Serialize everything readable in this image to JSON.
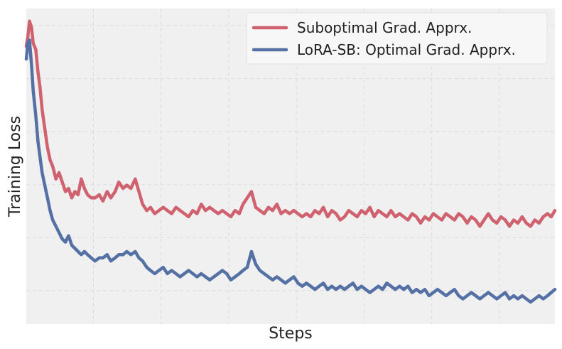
{
  "chart_data": {
    "type": "line",
    "title": "",
    "xlabel": "Steps",
    "ylabel": "Training Loss",
    "grid": true,
    "legend_position": "top-right",
    "background_color": "#f0f0f0",
    "xlim": [
      0,
      100
    ],
    "ylim": [
      0,
      100
    ],
    "x_grid": [
      12.7,
      25.5,
      38.3,
      51.1,
      63.9,
      76.7,
      89.5
    ],
    "y_grid": [
      10.6,
      27.4,
      44.2,
      61.0,
      77.8,
      94.6
    ],
    "series": [
      {
        "name": "Suboptimal Grad. Apprx.",
        "color": "#d0616f",
        "values": [
          [
            0,
            88
          ],
          [
            0.3,
            91
          ],
          [
            0.6,
            96
          ],
          [
            1.0,
            94
          ],
          [
            1.3,
            89
          ],
          [
            1.8,
            87
          ],
          [
            2.2,
            80
          ],
          [
            2.6,
            75
          ],
          [
            3.0,
            68
          ],
          [
            3.5,
            62
          ],
          [
            4.0,
            56
          ],
          [
            4.5,
            52
          ],
          [
            5.0,
            50
          ],
          [
            5.6,
            46
          ],
          [
            6.2,
            48
          ],
          [
            6.8,
            45
          ],
          [
            7.4,
            42
          ],
          [
            8.0,
            43
          ],
          [
            8.6,
            40
          ],
          [
            9.2,
            42
          ],
          [
            9.8,
            41
          ],
          [
            10.4,
            46
          ],
          [
            11.0,
            43
          ],
          [
            11.6,
            41
          ],
          [
            12.3,
            40
          ],
          [
            13.0,
            40
          ],
          [
            13.8,
            41
          ],
          [
            14.5,
            39
          ],
          [
            15.3,
            42
          ],
          [
            16.0,
            40
          ],
          [
            16.8,
            42
          ],
          [
            17.5,
            45
          ],
          [
            18.3,
            43
          ],
          [
            19.0,
            44
          ],
          [
            19.8,
            43
          ],
          [
            20.6,
            46
          ],
          [
            21.3,
            42
          ],
          [
            22.0,
            38
          ],
          [
            22.8,
            36
          ],
          [
            23.5,
            37
          ],
          [
            24.3,
            35
          ],
          [
            25.1,
            36
          ],
          [
            25.9,
            37
          ],
          [
            26.7,
            36
          ],
          [
            27.5,
            35
          ],
          [
            28.3,
            37
          ],
          [
            29.1,
            36
          ],
          [
            29.9,
            35
          ],
          [
            30.7,
            34
          ],
          [
            31.5,
            36
          ],
          [
            32.3,
            35
          ],
          [
            33.1,
            38
          ],
          [
            33.9,
            36
          ],
          [
            34.7,
            37
          ],
          [
            35.5,
            36
          ],
          [
            36.3,
            35
          ],
          [
            37.1,
            36
          ],
          [
            37.9,
            35
          ],
          [
            38.7,
            34
          ],
          [
            39.5,
            36
          ],
          [
            40.3,
            35
          ],
          [
            41.0,
            38
          ],
          [
            41.8,
            40
          ],
          [
            42.6,
            42
          ],
          [
            43.4,
            37
          ],
          [
            44.2,
            36
          ],
          [
            45.0,
            35
          ],
          [
            45.8,
            37
          ],
          [
            46.6,
            36
          ],
          [
            47.4,
            38
          ],
          [
            48.2,
            35
          ],
          [
            49.0,
            36
          ],
          [
            49.8,
            35
          ],
          [
            50.6,
            36
          ],
          [
            51.4,
            35
          ],
          [
            52.2,
            34
          ],
          [
            53.0,
            35
          ],
          [
            53.8,
            34
          ],
          [
            54.6,
            36
          ],
          [
            55.4,
            35
          ],
          [
            56.2,
            37
          ],
          [
            57.0,
            34
          ],
          [
            57.8,
            36
          ],
          [
            58.6,
            35
          ],
          [
            59.4,
            33
          ],
          [
            60.2,
            34
          ],
          [
            61.0,
            36
          ],
          [
            61.8,
            35
          ],
          [
            62.6,
            34
          ],
          [
            63.4,
            36
          ],
          [
            64.2,
            35
          ],
          [
            65.0,
            37
          ],
          [
            65.8,
            34
          ],
          [
            66.6,
            36
          ],
          [
            67.4,
            35
          ],
          [
            68.2,
            34
          ],
          [
            69.0,
            36
          ],
          [
            69.8,
            34
          ],
          [
            70.6,
            35
          ],
          [
            71.4,
            34
          ],
          [
            72.2,
            33
          ],
          [
            73.0,
            35
          ],
          [
            73.8,
            34
          ],
          [
            74.6,
            32
          ],
          [
            75.4,
            34
          ],
          [
            76.2,
            33
          ],
          [
            77.0,
            35
          ],
          [
            77.8,
            34
          ],
          [
            78.6,
            33
          ],
          [
            79.4,
            35
          ],
          [
            80.2,
            34
          ],
          [
            81.0,
            33
          ],
          [
            81.8,
            35
          ],
          [
            82.6,
            34
          ],
          [
            83.4,
            32
          ],
          [
            84.2,
            34
          ],
          [
            85.0,
            33
          ],
          [
            85.8,
            31
          ],
          [
            86.6,
            33
          ],
          [
            87.4,
            35
          ],
          [
            88.2,
            33
          ],
          [
            89.0,
            32
          ],
          [
            89.8,
            34
          ],
          [
            90.6,
            33
          ],
          [
            91.4,
            31
          ],
          [
            92.2,
            33
          ],
          [
            93.0,
            32
          ],
          [
            93.8,
            34
          ],
          [
            94.6,
            32
          ],
          [
            95.4,
            31
          ],
          [
            96.2,
            33
          ],
          [
            97.0,
            32
          ],
          [
            97.8,
            34
          ],
          [
            98.6,
            35
          ],
          [
            99.3,
            34
          ],
          [
            100,
            36
          ]
        ]
      },
      {
        "name": "LoRA-SB: Optimal Grad. Apprx.",
        "color": "#5470a5",
        "values": [
          [
            0,
            84
          ],
          [
            0.3,
            89
          ],
          [
            0.6,
            90
          ],
          [
            1.0,
            82
          ],
          [
            1.3,
            74
          ],
          [
            1.8,
            66
          ],
          [
            2.2,
            58
          ],
          [
            2.6,
            53
          ],
          [
            3.0,
            48
          ],
          [
            3.5,
            44
          ],
          [
            4.0,
            40
          ],
          [
            4.5,
            36
          ],
          [
            5.0,
            33
          ],
          [
            5.6,
            31
          ],
          [
            6.2,
            29
          ],
          [
            6.8,
            27
          ],
          [
            7.4,
            26
          ],
          [
            8.0,
            28
          ],
          [
            8.6,
            25
          ],
          [
            9.2,
            24
          ],
          [
            9.8,
            23
          ],
          [
            10.4,
            22
          ],
          [
            11.0,
            23
          ],
          [
            11.6,
            22
          ],
          [
            12.3,
            21
          ],
          [
            13.0,
            20
          ],
          [
            13.8,
            21
          ],
          [
            14.5,
            21
          ],
          [
            15.3,
            22
          ],
          [
            16.0,
            20
          ],
          [
            16.8,
            21
          ],
          [
            17.5,
            22
          ],
          [
            18.3,
            22
          ],
          [
            19.0,
            23
          ],
          [
            19.8,
            22
          ],
          [
            20.6,
            23
          ],
          [
            21.3,
            21
          ],
          [
            22.0,
            20
          ],
          [
            22.8,
            18
          ],
          [
            23.5,
            17
          ],
          [
            24.3,
            16
          ],
          [
            25.1,
            17
          ],
          [
            25.9,
            18
          ],
          [
            26.7,
            16
          ],
          [
            27.5,
            17
          ],
          [
            28.3,
            16
          ],
          [
            29.1,
            15
          ],
          [
            29.9,
            16
          ],
          [
            30.7,
            17
          ],
          [
            31.5,
            16
          ],
          [
            32.3,
            15
          ],
          [
            33.1,
            16
          ],
          [
            33.9,
            15
          ],
          [
            34.7,
            14
          ],
          [
            35.5,
            15
          ],
          [
            36.3,
            16
          ],
          [
            37.1,
            17
          ],
          [
            37.9,
            16
          ],
          [
            38.7,
            14
          ],
          [
            39.5,
            15
          ],
          [
            40.3,
            16
          ],
          [
            41.0,
            17
          ],
          [
            41.8,
            18
          ],
          [
            42.6,
            23
          ],
          [
            43.4,
            19
          ],
          [
            44.2,
            17
          ],
          [
            45.0,
            16
          ],
          [
            45.8,
            15
          ],
          [
            46.6,
            14
          ],
          [
            47.4,
            15
          ],
          [
            48.2,
            14
          ],
          [
            49.0,
            13
          ],
          [
            49.8,
            14
          ],
          [
            50.6,
            15
          ],
          [
            51.4,
            13
          ],
          [
            52.2,
            12
          ],
          [
            53.0,
            13
          ],
          [
            53.8,
            12
          ],
          [
            54.6,
            11
          ],
          [
            55.4,
            12
          ],
          [
            56.2,
            13
          ],
          [
            57.0,
            11
          ],
          [
            57.8,
            12
          ],
          [
            58.6,
            11
          ],
          [
            59.4,
            12
          ],
          [
            60.2,
            11
          ],
          [
            61.0,
            12
          ],
          [
            61.8,
            13
          ],
          [
            62.6,
            11
          ],
          [
            63.4,
            12
          ],
          [
            64.2,
            11
          ],
          [
            65.0,
            10
          ],
          [
            65.8,
            11
          ],
          [
            66.6,
            12
          ],
          [
            67.4,
            11
          ],
          [
            68.2,
            13
          ],
          [
            69.0,
            12
          ],
          [
            69.8,
            11
          ],
          [
            70.6,
            12
          ],
          [
            71.4,
            11
          ],
          [
            72.2,
            12
          ],
          [
            73.0,
            10
          ],
          [
            73.8,
            11
          ],
          [
            74.6,
            10
          ],
          [
            75.4,
            11
          ],
          [
            76.2,
            9
          ],
          [
            77.0,
            10
          ],
          [
            77.8,
            11
          ],
          [
            78.6,
            10
          ],
          [
            79.4,
            9
          ],
          [
            80.2,
            10
          ],
          [
            81.0,
            11
          ],
          [
            81.8,
            9
          ],
          [
            82.6,
            8
          ],
          [
            83.4,
            9
          ],
          [
            84.2,
            10
          ],
          [
            85.0,
            9
          ],
          [
            85.8,
            8
          ],
          [
            86.6,
            9
          ],
          [
            87.4,
            10
          ],
          [
            88.2,
            9
          ],
          [
            89.0,
            8
          ],
          [
            89.8,
            9
          ],
          [
            90.6,
            10
          ],
          [
            91.4,
            8
          ],
          [
            92.2,
            9
          ],
          [
            93.0,
            8
          ],
          [
            93.8,
            9
          ],
          [
            94.6,
            8
          ],
          [
            95.4,
            7
          ],
          [
            96.2,
            8
          ],
          [
            97.0,
            9
          ],
          [
            97.8,
            8
          ],
          [
            98.6,
            9
          ],
          [
            99.3,
            10
          ],
          [
            100,
            11
          ]
        ]
      }
    ]
  }
}
